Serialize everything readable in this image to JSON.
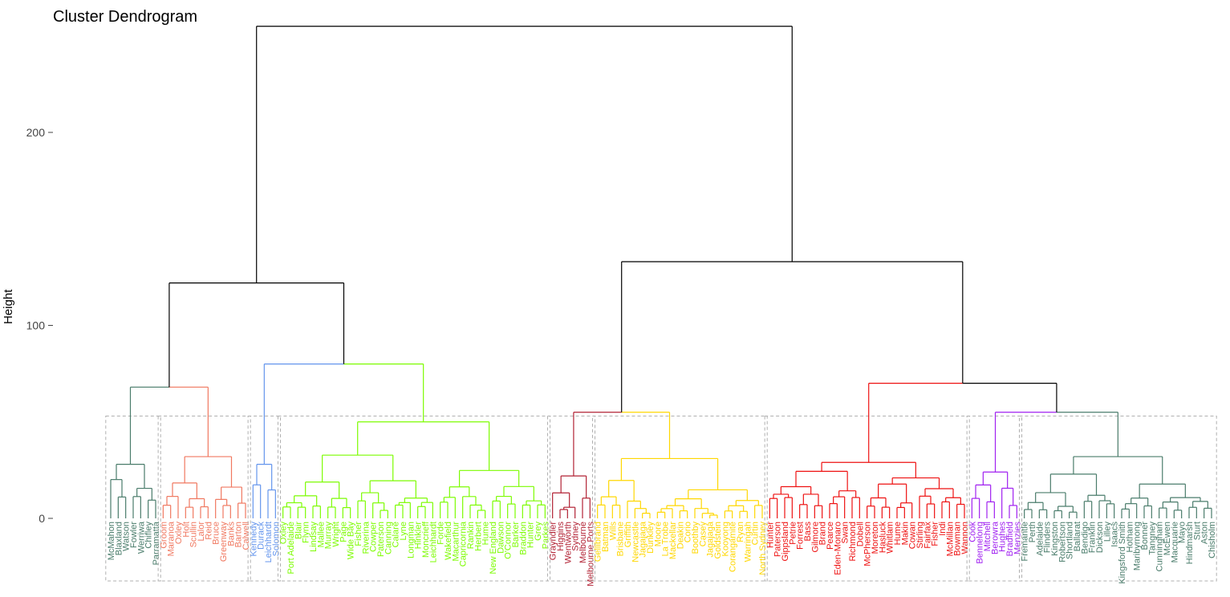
{
  "chart_data": {
    "type": "dendrogram",
    "title": "Cluster Dendrogram",
    "ylabel": "Height",
    "ylim": [
      0,
      255
    ],
    "yticks": [
      0,
      100,
      200
    ],
    "root_height": 255,
    "clusters": [
      {
        "color": "#4a7c6b",
        "height": 68,
        "leaves": [
          "McMahon",
          "Blaxland",
          "Watson",
          "Fowler",
          "Werriwa",
          "Chifley",
          "Parramatta"
        ]
      },
      {
        "color": "#f07860",
        "height": 68,
        "leaves": [
          "Groom",
          "Maranoa",
          "Oxley",
          "Holt",
          "Scullin",
          "Lalor",
          "Reid",
          "Bruce",
          "Greenway",
          "Banks",
          "Barton",
          "Calwell"
        ]
      },
      {
        "color": "#6495ed",
        "height": 80,
        "leaves": [
          "Kennedy",
          "Durack",
          "Leichhardt",
          "Solomon"
        ]
      },
      {
        "color": "#7cfc00",
        "height": 80,
        "leaves": [
          "Oxley",
          "Port Adelaide",
          "Blair",
          "Flynn",
          "Lindsay",
          "Mallee",
          "Murray",
          "Wright",
          "Page",
          "Wide Bay",
          "Fisher",
          "Riverina",
          "Cowper",
          "Paterson",
          "Canning",
          "Calare",
          "Lyne",
          "Longman",
          "Hinkler",
          "Moncrieff",
          "Leichhardt",
          "Forde",
          "Wakefield",
          "Macarthur",
          "Capricornia",
          "Rankin",
          "Herbert",
          "Hume",
          "New England",
          "Dawson",
          "O'Connor",
          "Barker",
          "Braddon",
          "Hunter",
          "Grey",
          "Parkes"
        ]
      },
      {
        "color": "#b22234",
        "height": 55,
        "leaves": [
          "Grayndler",
          "Higgins",
          "Wentworth",
          "Sydney",
          "Melbourne",
          "Melbourne Ports"
        ]
      },
      {
        "color": "#ffd700",
        "height": 55,
        "leaves": [
          "Gellibrand",
          "Batman",
          "Wills",
          "Brisbane",
          "Griffith",
          "Newcastle",
          "Jagajaga",
          "Dunkley",
          "Moore",
          "La Trobe",
          "Mackellar",
          "Deakin",
          "Corio",
          "Boothby",
          "Casey",
          "Jagajaga",
          "Goldstein",
          "Kooyong",
          "Corangamite",
          "Ryan",
          "Warringah",
          "Curtin",
          "North Sydney"
        ]
      },
      {
        "color": "#ee1111",
        "height": 70,
        "leaves": [
          "Hunter",
          "Paterson",
          "Gippsland",
          "Petrie",
          "Forrest",
          "Bass",
          "Gilmore",
          "Brand",
          "Pearce",
          "Eden-Monaro",
          "Swan",
          "Richmond",
          "Dobell",
          "McPherson",
          "Moreton",
          "Hasluck",
          "Whitlam",
          "Hume",
          "Makin",
          "Cowan",
          "Stirling",
          "Fairfax",
          "Fisher",
          "Indi",
          "McMillan",
          "Bowman",
          "Wannon"
        ]
      },
      {
        "color": "#a020f0",
        "height": 55,
        "leaves": [
          "Cook",
          "Bennelong",
          "Mitchell",
          "Berowra",
          "Hughes",
          "Bradfield",
          "Menzies"
        ]
      },
      {
        "color": "#4a7c6b",
        "height": 55,
        "leaves": [
          "Fremantle",
          "Perth",
          "Adelaide",
          "Flinders",
          "Kingston",
          "Robertson",
          "Shortland",
          "Ballarat",
          "Bendigo",
          "Franklin",
          "Dickson",
          "Lilley",
          "Isaacs",
          "Kingsford Smith",
          "Hotham",
          "Maribyrnong",
          "Bonner",
          "Tangney",
          "Cunningham",
          "McEwen",
          "Macquarie",
          "Mayo",
          "Hindmarsh",
          "Sturt",
          "Aston",
          "Chisholm"
        ]
      }
    ],
    "top_merges": [
      {
        "height": 122,
        "joins": "clusters 1-2 with clusters 3-4"
      },
      {
        "height": 133,
        "joins": "clusters 5-6 with clusters 7-9"
      },
      {
        "height": 70,
        "joins": "cluster 7 with clusters 8-9"
      },
      {
        "height": 255,
        "joins": "root"
      }
    ]
  }
}
